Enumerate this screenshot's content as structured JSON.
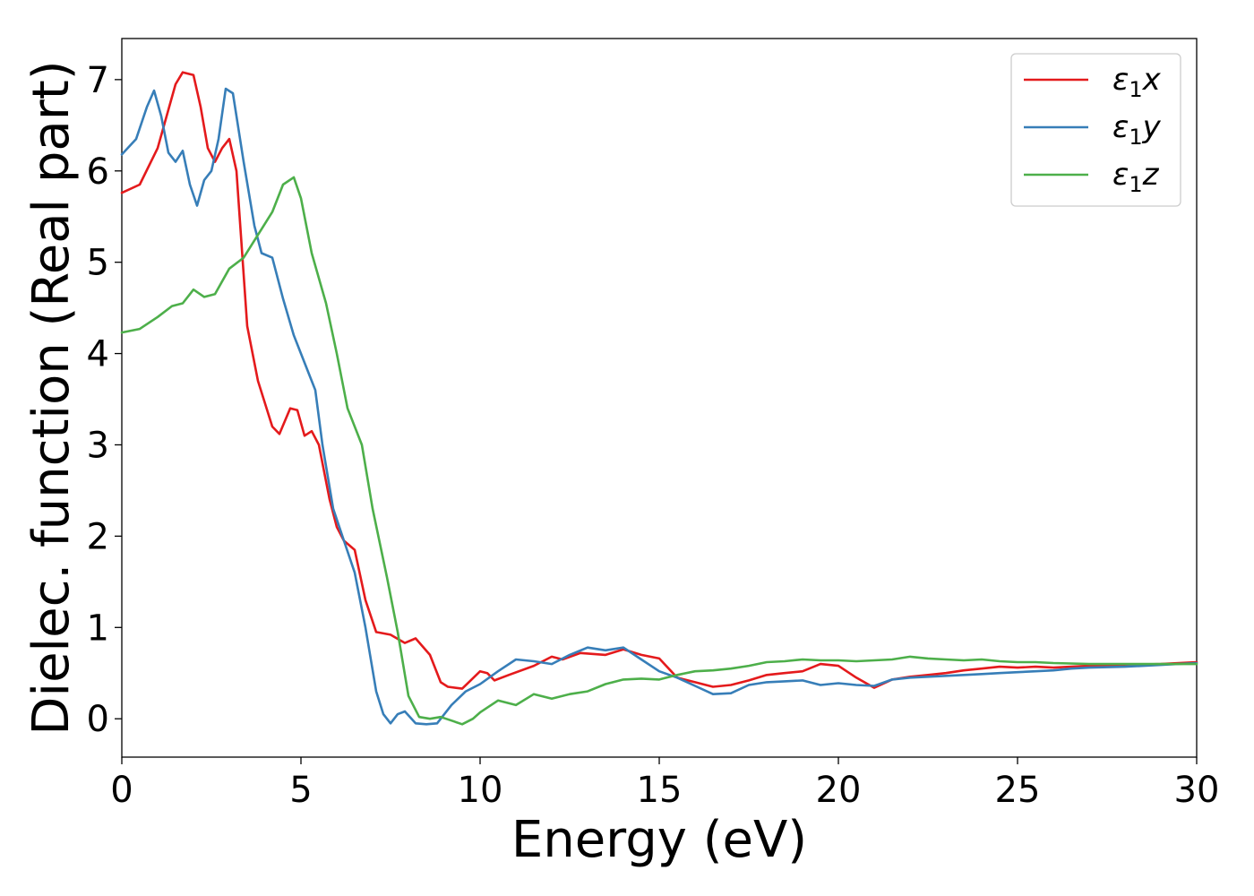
{
  "chart_data": {
    "type": "line",
    "xlabel": "Energy (eV)",
    "ylabel": "Dielec. function (Real part)",
    "xlim": [
      0,
      30
    ],
    "ylim": [
      -0.42,
      7.45
    ],
    "xticks": [
      "0",
      "5",
      "10",
      "15",
      "20",
      "25",
      "30"
    ],
    "yticks": [
      "0",
      "1",
      "2",
      "3",
      "4",
      "5",
      "6",
      "7"
    ],
    "legend_position": "top-right",
    "grid": false,
    "series": [
      {
        "name": "ε1x",
        "legend_main": "ε",
        "legend_sub": "1",
        "legend_suffix": "x",
        "color": "#e41a1c",
        "points": [
          [
            0,
            5.76
          ],
          [
            0.5,
            5.85
          ],
          [
            1,
            6.25
          ],
          [
            1.5,
            6.95
          ],
          [
            1.7,
            7.08
          ],
          [
            2,
            7.05
          ],
          [
            2.2,
            6.7
          ],
          [
            2.4,
            6.25
          ],
          [
            2.6,
            6.1
          ],
          [
            2.8,
            6.25
          ],
          [
            3,
            6.35
          ],
          [
            3.2,
            6.0
          ],
          [
            3.5,
            4.3
          ],
          [
            3.8,
            3.7
          ],
          [
            4.2,
            3.2
          ],
          [
            4.4,
            3.12
          ],
          [
            4.7,
            3.4
          ],
          [
            4.9,
            3.38
          ],
          [
            5.1,
            3.1
          ],
          [
            5.3,
            3.15
          ],
          [
            5.5,
            3.0
          ],
          [
            5.8,
            2.4
          ],
          [
            6.0,
            2.1
          ],
          [
            6.2,
            1.95
          ],
          [
            6.5,
            1.85
          ],
          [
            6.8,
            1.3
          ],
          [
            7.1,
            0.95
          ],
          [
            7.5,
            0.92
          ],
          [
            7.9,
            0.83
          ],
          [
            8.2,
            0.88
          ],
          [
            8.6,
            0.7
          ],
          [
            8.9,
            0.4
          ],
          [
            9.1,
            0.35
          ],
          [
            9.5,
            0.33
          ],
          [
            10.0,
            0.52
          ],
          [
            10.2,
            0.5
          ],
          [
            10.4,
            0.42
          ],
          [
            10.8,
            0.48
          ],
          [
            11.5,
            0.58
          ],
          [
            12.0,
            0.68
          ],
          [
            12.3,
            0.65
          ],
          [
            12.8,
            0.72
          ],
          [
            13.5,
            0.7
          ],
          [
            14.0,
            0.76
          ],
          [
            14.5,
            0.7
          ],
          [
            15.0,
            0.66
          ],
          [
            15.5,
            0.45
          ],
          [
            16.0,
            0.4
          ],
          [
            16.5,
            0.35
          ],
          [
            17.0,
            0.37
          ],
          [
            17.5,
            0.42
          ],
          [
            18.0,
            0.48
          ],
          [
            18.5,
            0.5
          ],
          [
            19.0,
            0.52
          ],
          [
            19.5,
            0.6
          ],
          [
            20.0,
            0.58
          ],
          [
            20.5,
            0.45
          ],
          [
            21.0,
            0.34
          ],
          [
            21.5,
            0.43
          ],
          [
            22.0,
            0.46
          ],
          [
            22.5,
            0.48
          ],
          [
            23.0,
            0.5
          ],
          [
            23.5,
            0.53
          ],
          [
            24.0,
            0.55
          ],
          [
            24.5,
            0.57
          ],
          [
            25.0,
            0.56
          ],
          [
            25.5,
            0.57
          ],
          [
            26.0,
            0.56
          ],
          [
            26.5,
            0.57
          ],
          [
            27.0,
            0.58
          ],
          [
            28.0,
            0.59
          ],
          [
            29.0,
            0.6
          ],
          [
            30,
            0.62
          ]
        ]
      },
      {
        "name": "ε1y",
        "legend_main": "ε",
        "legend_sub": "1",
        "legend_suffix": "y",
        "color": "#377eb8",
        "points": [
          [
            0,
            6.18
          ],
          [
            0.4,
            6.35
          ],
          [
            0.7,
            6.7
          ],
          [
            0.9,
            6.88
          ],
          [
            1.1,
            6.6
          ],
          [
            1.3,
            6.2
          ],
          [
            1.5,
            6.1
          ],
          [
            1.7,
            6.22
          ],
          [
            1.9,
            5.85
          ],
          [
            2.1,
            5.62
          ],
          [
            2.3,
            5.9
          ],
          [
            2.5,
            6.0
          ],
          [
            2.7,
            6.35
          ],
          [
            2.9,
            6.9
          ],
          [
            3.1,
            6.85
          ],
          [
            3.4,
            6.1
          ],
          [
            3.7,
            5.4
          ],
          [
            3.9,
            5.1
          ],
          [
            4.2,
            5.05
          ],
          [
            4.5,
            4.6
          ],
          [
            4.8,
            4.2
          ],
          [
            5.0,
            4.0
          ],
          [
            5.2,
            3.8
          ],
          [
            5.4,
            3.6
          ],
          [
            5.6,
            3.0
          ],
          [
            5.9,
            2.3
          ],
          [
            6.2,
            1.95
          ],
          [
            6.5,
            1.6
          ],
          [
            6.8,
            1.0
          ],
          [
            7.1,
            0.3
          ],
          [
            7.3,
            0.05
          ],
          [
            7.5,
            -0.05
          ],
          [
            7.7,
            0.05
          ],
          [
            7.9,
            0.08
          ],
          [
            8.2,
            -0.05
          ],
          [
            8.5,
            -0.06
          ],
          [
            8.8,
            -0.05
          ],
          [
            9.2,
            0.15
          ],
          [
            9.6,
            0.3
          ],
          [
            10.0,
            0.38
          ],
          [
            10.5,
            0.52
          ],
          [
            11.0,
            0.65
          ],
          [
            11.5,
            0.63
          ],
          [
            12.0,
            0.6
          ],
          [
            12.5,
            0.7
          ],
          [
            13.0,
            0.78
          ],
          [
            13.5,
            0.75
          ],
          [
            14.0,
            0.78
          ],
          [
            14.5,
            0.65
          ],
          [
            15.0,
            0.52
          ],
          [
            15.5,
            0.45
          ],
          [
            16.0,
            0.36
          ],
          [
            16.5,
            0.27
          ],
          [
            17.0,
            0.28
          ],
          [
            17.5,
            0.37
          ],
          [
            18.0,
            0.4
          ],
          [
            18.5,
            0.41
          ],
          [
            19.0,
            0.42
          ],
          [
            19.5,
            0.37
          ],
          [
            20.0,
            0.39
          ],
          [
            20.5,
            0.37
          ],
          [
            21.0,
            0.36
          ],
          [
            21.5,
            0.43
          ],
          [
            22.0,
            0.45
          ],
          [
            22.5,
            0.46
          ],
          [
            23.0,
            0.47
          ],
          [
            23.5,
            0.48
          ],
          [
            24.0,
            0.49
          ],
          [
            24.5,
            0.5
          ],
          [
            25.0,
            0.51
          ],
          [
            25.5,
            0.52
          ],
          [
            26.0,
            0.53
          ],
          [
            26.5,
            0.55
          ],
          [
            27.0,
            0.56
          ],
          [
            28.0,
            0.57
          ],
          [
            29.0,
            0.59
          ],
          [
            30,
            0.61
          ]
        ]
      },
      {
        "name": "ε1z",
        "legend_main": "ε",
        "legend_sub": "1",
        "legend_suffix": "z",
        "color": "#4daf4a",
        "points": [
          [
            0,
            4.23
          ],
          [
            0.5,
            4.27
          ],
          [
            1.0,
            4.4
          ],
          [
            1.4,
            4.52
          ],
          [
            1.7,
            4.55
          ],
          [
            2.0,
            4.7
          ],
          [
            2.3,
            4.62
          ],
          [
            2.6,
            4.65
          ],
          [
            3.0,
            4.93
          ],
          [
            3.4,
            5.05
          ],
          [
            3.8,
            5.3
          ],
          [
            4.2,
            5.55
          ],
          [
            4.5,
            5.85
          ],
          [
            4.8,
            5.93
          ],
          [
            5.0,
            5.7
          ],
          [
            5.3,
            5.1
          ],
          [
            5.7,
            4.55
          ],
          [
            6.0,
            4.0
          ],
          [
            6.3,
            3.4
          ],
          [
            6.7,
            3.0
          ],
          [
            7.0,
            2.3
          ],
          [
            7.4,
            1.55
          ],
          [
            7.7,
            0.95
          ],
          [
            8.0,
            0.25
          ],
          [
            8.3,
            0.02
          ],
          [
            8.6,
            0.0
          ],
          [
            8.9,
            0.02
          ],
          [
            9.2,
            -0.02
          ],
          [
            9.5,
            -0.06
          ],
          [
            9.8,
            0.0
          ],
          [
            10.0,
            0.07
          ],
          [
            10.5,
            0.2
          ],
          [
            11.0,
            0.15
          ],
          [
            11.5,
            0.27
          ],
          [
            12.0,
            0.22
          ],
          [
            12.5,
            0.27
          ],
          [
            13.0,
            0.3
          ],
          [
            13.5,
            0.38
          ],
          [
            14.0,
            0.43
          ],
          [
            14.5,
            0.44
          ],
          [
            15.0,
            0.43
          ],
          [
            15.5,
            0.48
          ],
          [
            16.0,
            0.52
          ],
          [
            16.5,
            0.53
          ],
          [
            17.0,
            0.55
          ],
          [
            17.5,
            0.58
          ],
          [
            18.0,
            0.62
          ],
          [
            18.5,
            0.63
          ],
          [
            19.0,
            0.65
          ],
          [
            19.5,
            0.64
          ],
          [
            20.0,
            0.64
          ],
          [
            20.5,
            0.63
          ],
          [
            21.0,
            0.64
          ],
          [
            21.5,
            0.65
          ],
          [
            22.0,
            0.68
          ],
          [
            22.5,
            0.66
          ],
          [
            23.0,
            0.65
          ],
          [
            23.5,
            0.64
          ],
          [
            24.0,
            0.65
          ],
          [
            24.5,
            0.63
          ],
          [
            25.0,
            0.62
          ],
          [
            25.5,
            0.62
          ],
          [
            26.0,
            0.61
          ],
          [
            27.0,
            0.6
          ],
          [
            28.0,
            0.6
          ],
          [
            29.0,
            0.6
          ],
          [
            30,
            0.6
          ]
        ]
      }
    ]
  }
}
